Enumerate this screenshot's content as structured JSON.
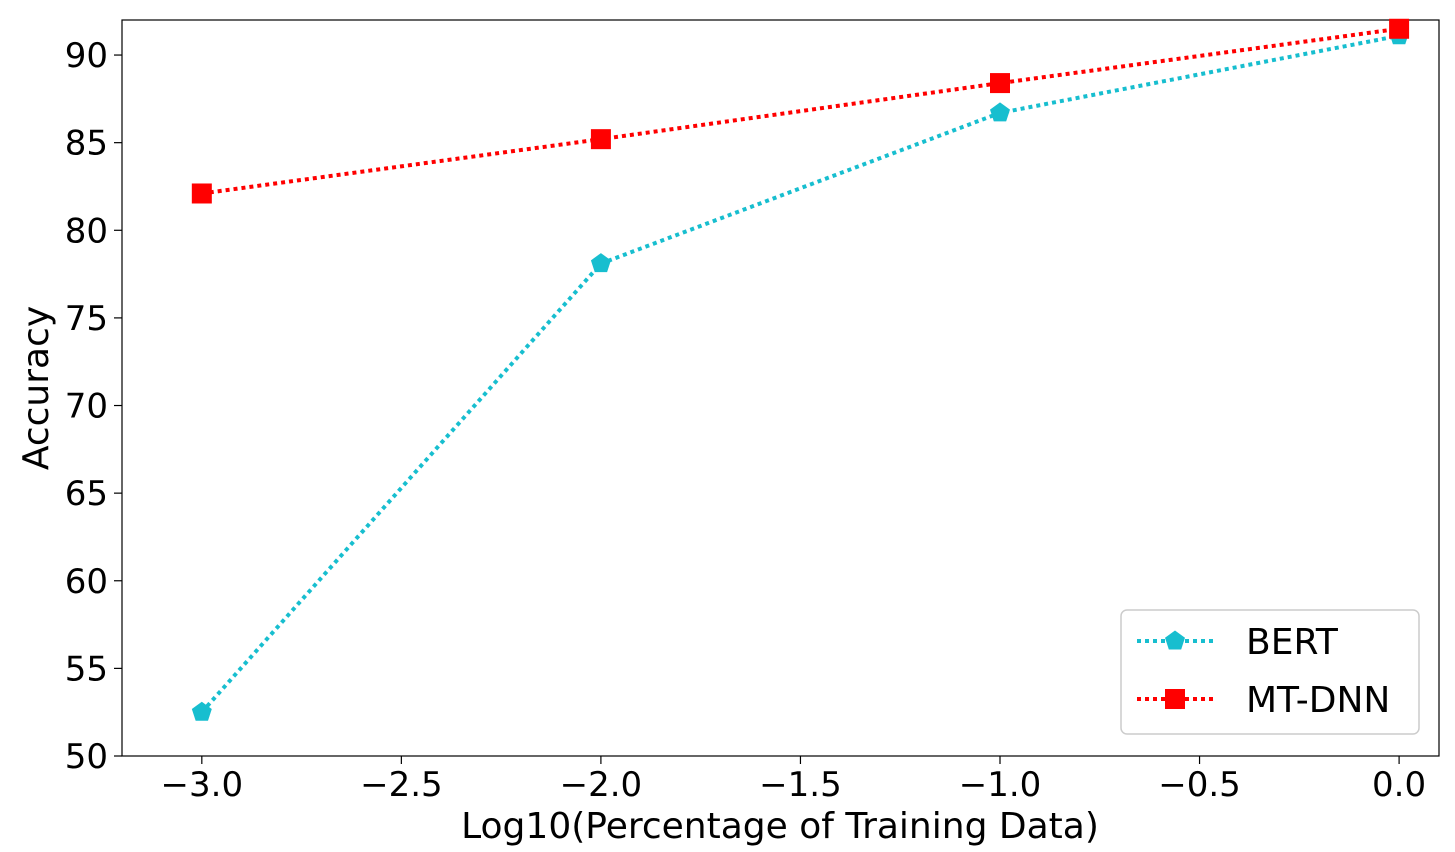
{
  "chart_data": {
    "type": "line",
    "title": "",
    "xlabel": "Log10(Percentage of Training Data)",
    "ylabel": "Accuracy",
    "xlim": [
      -3.2,
      0.1
    ],
    "ylim": [
      50,
      92
    ],
    "x_ticks": [
      -3.0,
      -2.5,
      -2.0,
      -1.5,
      -1.0,
      -0.5,
      0.0
    ],
    "x_tick_labels": [
      "−3.0",
      "−2.5",
      "−2.0",
      "−1.5",
      "−1.0",
      "−0.5",
      "0.0"
    ],
    "y_ticks": [
      50,
      55,
      60,
      65,
      70,
      75,
      80,
      85,
      90
    ],
    "y_tick_labels": [
      "50",
      "55",
      "60",
      "65",
      "70",
      "75",
      "80",
      "85",
      "90"
    ],
    "grid": false,
    "legend_position": "bottom-right",
    "x": [
      -3.0,
      -2.0,
      -1.0,
      0.0
    ],
    "series": [
      {
        "name": "BERT",
        "values": [
          52.5,
          78.1,
          86.7,
          91.1
        ],
        "color": "#17becf",
        "marker": "pentagon",
        "linestyle": "dotted"
      },
      {
        "name": "MT-DNN",
        "values": [
          82.1,
          85.2,
          88.4,
          91.5
        ],
        "color": "#ff0000",
        "marker": "square",
        "linestyle": "dotted"
      }
    ]
  }
}
